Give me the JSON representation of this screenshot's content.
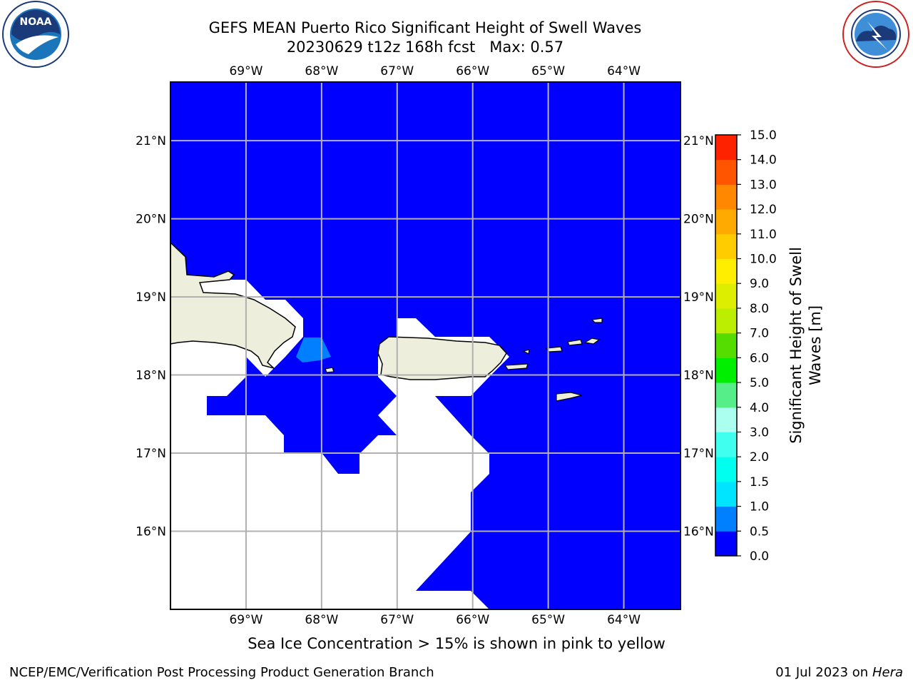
{
  "header": {
    "title": "GEFS MEAN Puerto Rico Significant Height of Swell Waves",
    "subtitle": "20230629 t12z 168h fcst   Max: 0.57"
  },
  "logos": {
    "left": {
      "name": "noaa-logo",
      "text": "NOAA",
      "ring_text": "NATIONAL OCEANIC AND ATMOSPHERIC ADMINISTRATION · U.S. DEPARTMENT OF COMMERCE"
    },
    "right": {
      "name": "nws-logo",
      "ring_text": "NATIONAL WEATHER SERVICE"
    }
  },
  "map": {
    "lon_range": [
      -70.0,
      -63.25
    ],
    "lat_range": [
      15.0,
      21.75
    ],
    "lon_ticks": [
      "69°W",
      "68°W",
      "67°W",
      "66°W",
      "65°W",
      "64°W"
    ],
    "lat_ticks": [
      "21°N",
      "20°N",
      "19°N",
      "18°N",
      "17°N",
      "16°N"
    ],
    "gridlines": true,
    "ocean_color": "#0000ff",
    "land_color": "#eeeedd",
    "masked_color": "#ffffff",
    "max_value_color": "#0080ff"
  },
  "colorbar": {
    "label_line1": "Significant Height of Swell",
    "label_line2": "Waves [m]",
    "levels": [
      {
        "value": "0.0",
        "color": "#0000ff"
      },
      {
        "value": "0.5",
        "color": "#0080ff"
      },
      {
        "value": "1.0",
        "color": "#00e5ff"
      },
      {
        "value": "1.5",
        "color": "#00ffee"
      },
      {
        "value": "2.0",
        "color": "#40ffee"
      },
      {
        "value": "3.0",
        "color": "#aaffee"
      },
      {
        "value": "4.0",
        "color": "#55ee88"
      },
      {
        "value": "5.0",
        "color": "#00ee00"
      },
      {
        "value": "6.0",
        "color": "#55dd00"
      },
      {
        "value": "7.0",
        "color": "#bbee00"
      },
      {
        "value": "8.0",
        "color": "#ddee00"
      },
      {
        "value": "9.0",
        "color": "#ffee00"
      },
      {
        "value": "10.0",
        "color": "#ffcc00"
      },
      {
        "value": "11.0",
        "color": "#ffaa00"
      },
      {
        "value": "12.0",
        "color": "#ff8800"
      },
      {
        "value": "13.0",
        "color": "#ff5500"
      },
      {
        "value": "14.0",
        "color": "#ff2200"
      },
      {
        "value": "15.0",
        "color": "#ff0000"
      }
    ]
  },
  "note": "Sea Ice Concentration > 15% is shown in pink to yellow",
  "footer": {
    "left": "NCEP/EMC/Verification Post Processing Product Generation Branch",
    "right_prefix": "01 Jul 2023 on ",
    "right_host": "Hera"
  }
}
